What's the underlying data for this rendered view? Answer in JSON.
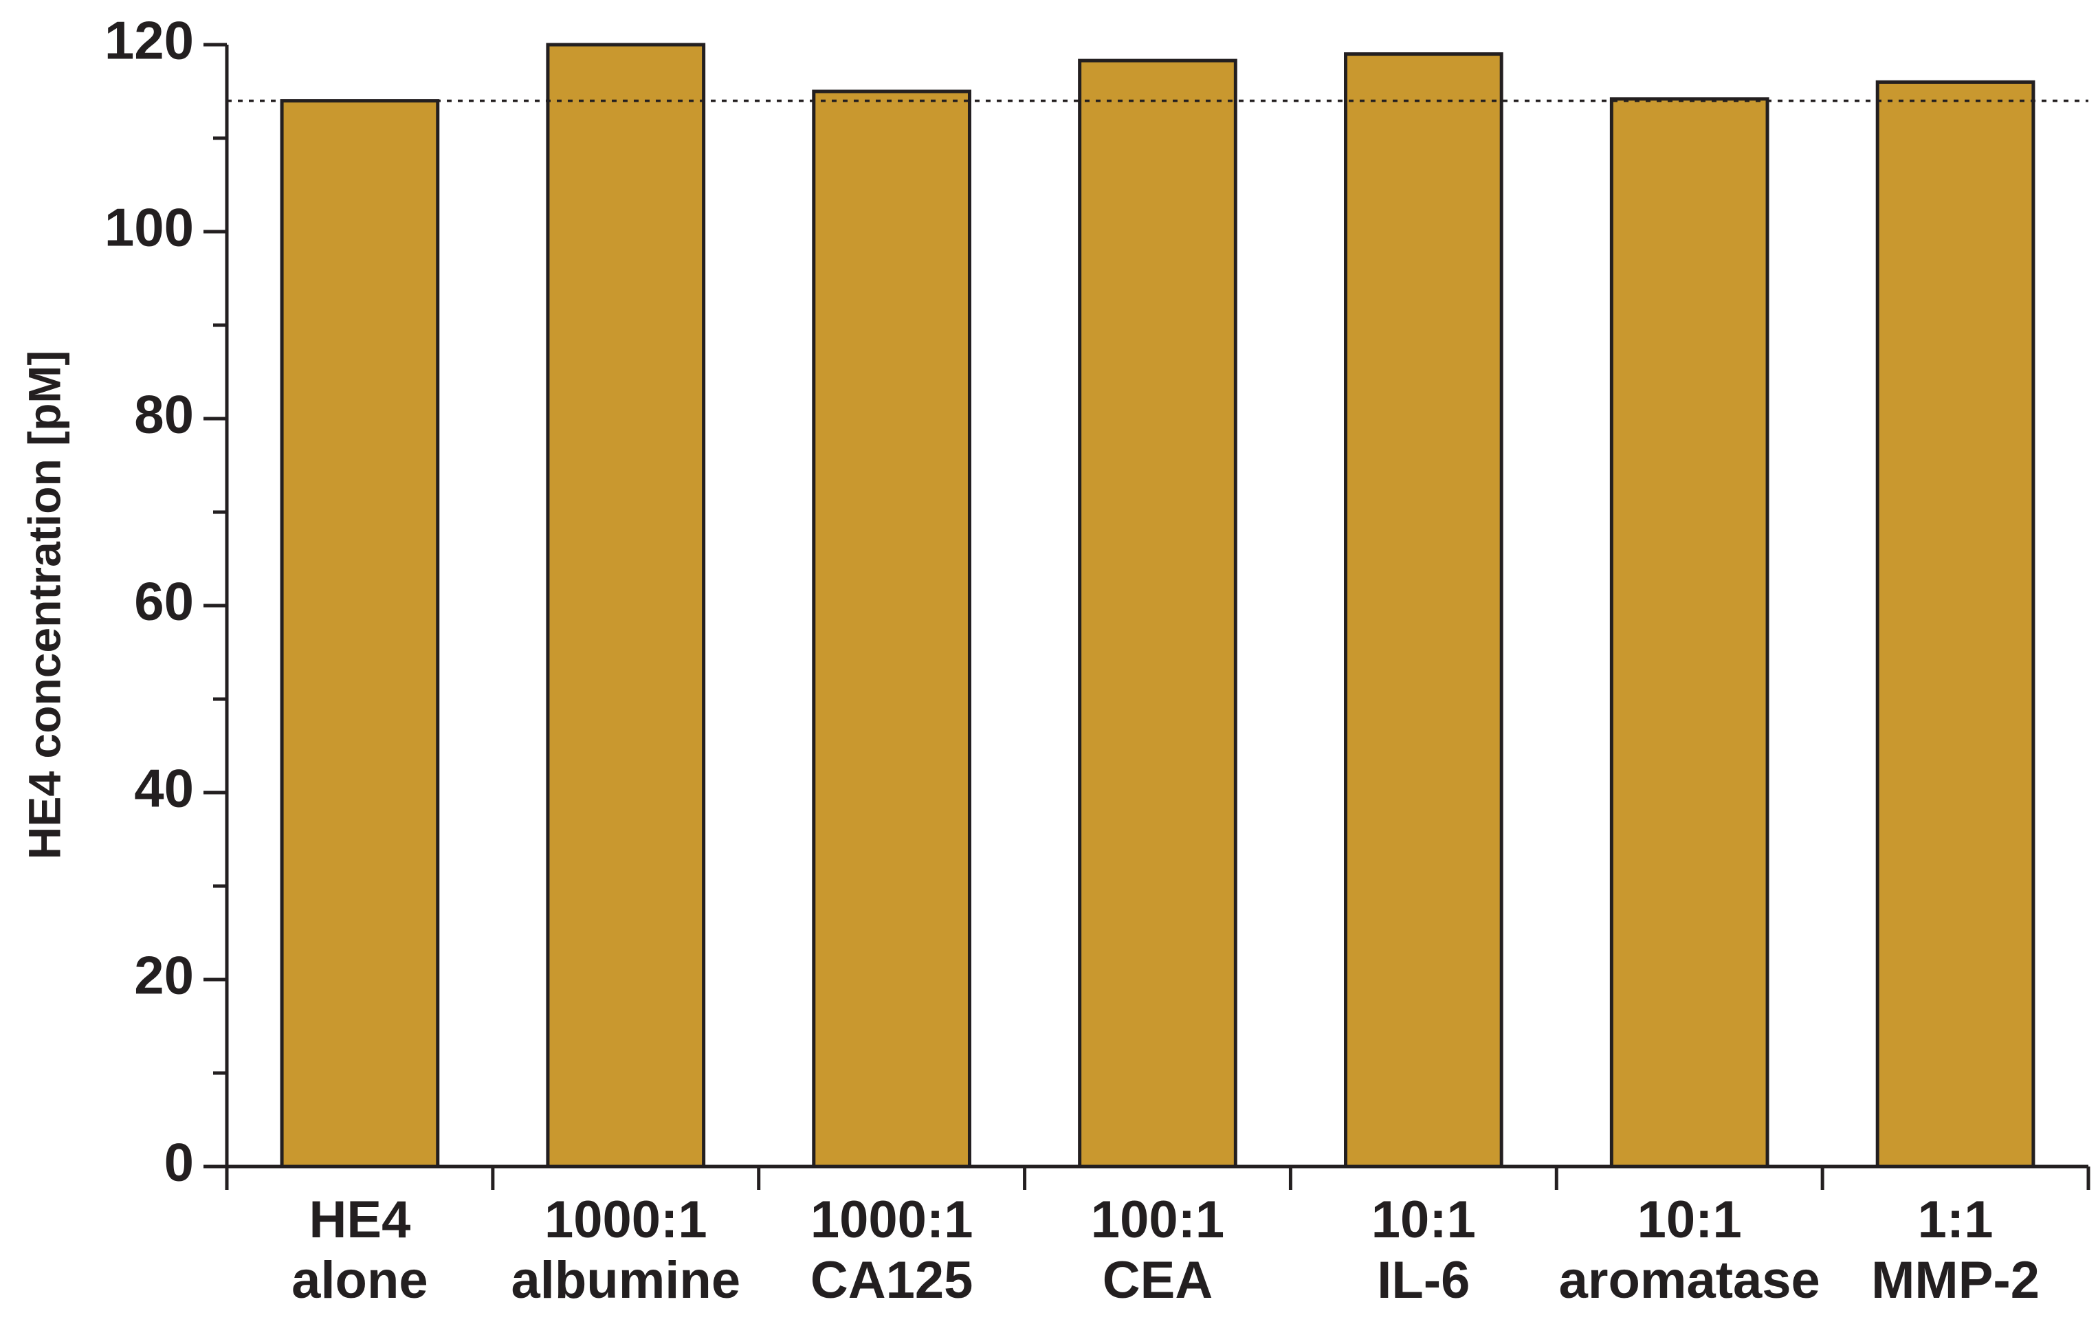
{
  "chart_data": {
    "type": "bar",
    "y_label": "HE4 concentration [pM]",
    "categories": [
      "HE4 alone",
      "1000:1 albumine",
      "1000:1 CA125",
      "100:1 CEA",
      "10:1 IL-6",
      "10:1 aromatase",
      "1:1 MMP-2"
    ],
    "values": [
      114,
      120,
      115,
      118.3,
      119,
      114.2,
      116
    ],
    "color": "#c9982f",
    "ylim": [
      0,
      120
    ],
    "yticks": [
      0,
      20,
      40,
      60,
      80,
      100,
      120
    ],
    "yticks_minor": [
      10,
      30,
      50,
      70,
      90,
      110
    ],
    "reference_line": 114
  }
}
